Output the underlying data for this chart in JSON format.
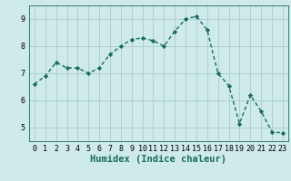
{
  "x": [
    0,
    1,
    2,
    3,
    4,
    5,
    6,
    7,
    8,
    9,
    10,
    11,
    12,
    13,
    14,
    15,
    16,
    17,
    18,
    19,
    20,
    21,
    22,
    23
  ],
  "y": [
    6.6,
    6.9,
    7.4,
    7.2,
    7.2,
    7.0,
    7.2,
    7.7,
    8.0,
    8.25,
    8.3,
    8.2,
    8.0,
    8.55,
    9.0,
    9.1,
    8.6,
    7.0,
    6.55,
    5.15,
    6.2,
    5.6,
    4.85,
    4.8
  ],
  "line_color": "#1a6b5e",
  "marker": "D",
  "marker_size": 2.2,
  "xlabel": "Humidex (Indice chaleur)",
  "xlim": [
    -0.5,
    23.5
  ],
  "ylim": [
    4.5,
    9.5
  ],
  "yticks": [
    5,
    6,
    7,
    8,
    9
  ],
  "xticks": [
    0,
    1,
    2,
    3,
    4,
    5,
    6,
    7,
    8,
    9,
    10,
    11,
    12,
    13,
    14,
    15,
    16,
    17,
    18,
    19,
    20,
    21,
    22,
    23
  ],
  "bg_color": "#ceeaeb",
  "grid_color": "#aacccc",
  "tick_label_fontsize": 6.0,
  "xlabel_fontsize": 7.5,
  "line_width": 1.0
}
